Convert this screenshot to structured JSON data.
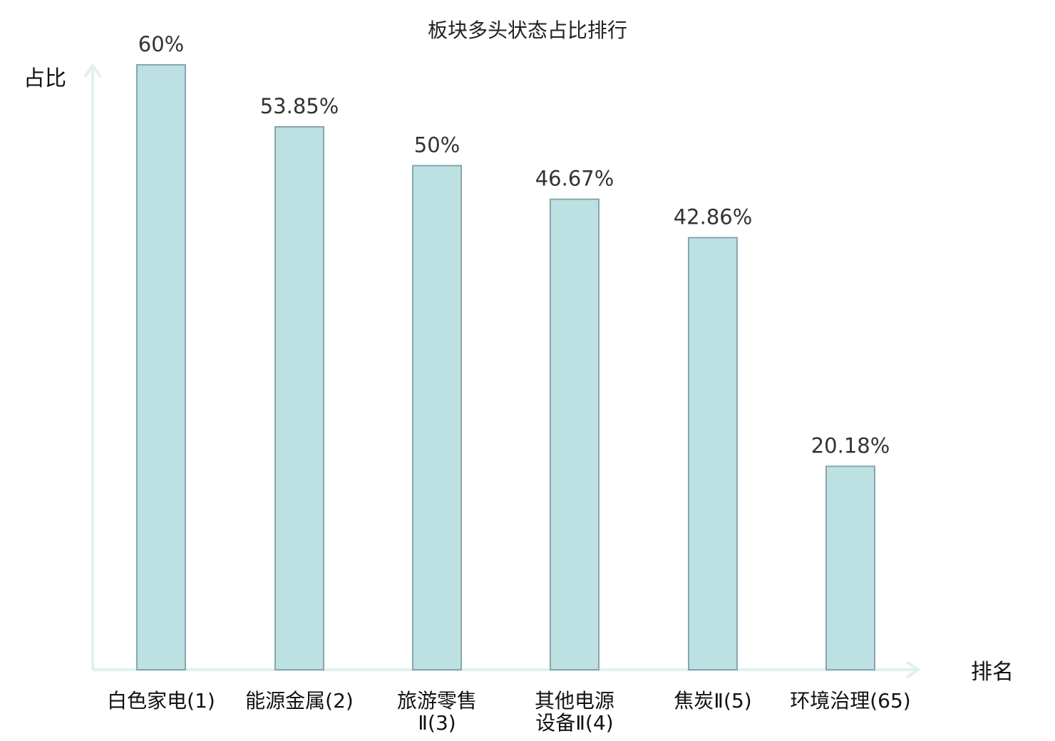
{
  "chart_data": {
    "type": "bar",
    "title": "板块多头状态占比排行",
    "ylabel": "占比",
    "xlabel": "排名",
    "categories": [
      [
        "白色家电(1)"
      ],
      [
        "能源金属(2)"
      ],
      [
        "旅游零售",
        "Ⅱ(3)"
      ],
      [
        "其他电源",
        "设备Ⅱ(4)"
      ],
      [
        "焦炭Ⅱ(5)"
      ],
      [
        "环境治理(65)"
      ]
    ],
    "values": [
      60,
      53.85,
      50,
      46.67,
      42.86,
      20.18
    ],
    "value_labels": [
      "60%",
      "53.85%",
      "50%",
      "46.67%",
      "42.86%",
      "20.18%"
    ],
    "highlight_index": 5,
    "ylim": [
      0,
      60
    ],
    "grid": false,
    "legend": "none"
  },
  "colors": {
    "bar_fill": "#bde0e3",
    "bar_stroke": "#87a6ab",
    "axis": "#dff0ef",
    "highlight_text": "#e00000",
    "text": "#222222"
  }
}
